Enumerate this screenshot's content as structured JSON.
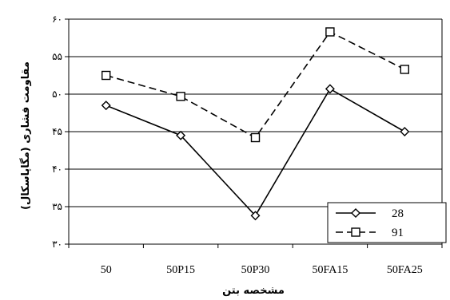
{
  "chart_data": {
    "type": "line",
    "title": "",
    "xlabel": "مشخصه بتن",
    "ylabel": "مقاومت فشاری (مگاپاسکال)",
    "categories": [
      "50",
      "50P15",
      "50P30",
      "50FA15",
      "50FA25"
    ],
    "ylim": [
      30,
      60
    ],
    "yticks": [
      30,
      35,
      40,
      45,
      50,
      55,
      60
    ],
    "ytick_labels": [
      "۳۰",
      "۳۵",
      "۴۰",
      "۴۵",
      "۵۰",
      "۵۵",
      "۶۰"
    ],
    "grid": true,
    "legend_position": "bottom-right",
    "series": [
      {
        "name": "28",
        "values": [
          48.5,
          44.5,
          33.8,
          50.7,
          45.0
        ],
        "marker": "diamond",
        "dash": "solid",
        "color": "#000000"
      },
      {
        "name": "91",
        "values": [
          52.5,
          49.7,
          44.2,
          58.3,
          53.3
        ],
        "marker": "square",
        "dash": "dashed",
        "color": "#000000"
      }
    ]
  }
}
